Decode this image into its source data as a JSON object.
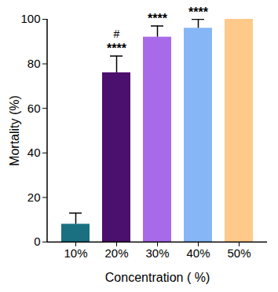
{
  "chart_data": {
    "type": "bar",
    "categories": [
      "10%",
      "20%",
      "30%",
      "40%",
      "50%"
    ],
    "values": [
      8,
      76,
      92,
      96,
      100
    ],
    "errors": [
      5,
      7.5,
      5,
      4,
      null
    ],
    "significance": [
      null,
      "****",
      "****",
      "****",
      null
    ],
    "comparison": [
      null,
      "#",
      null,
      null,
      null
    ],
    "colors": [
      "#1a7080",
      "#4b0f6e",
      "#a86ae8",
      "#86b6f6",
      "#ffc98a"
    ],
    "x_label": "Concentration ( %)",
    "y_label": "Mortality (%)",
    "ylim": [
      0,
      100
    ],
    "yticks": [
      0,
      20,
      40,
      60,
      80,
      100
    ],
    "grid": false
  }
}
